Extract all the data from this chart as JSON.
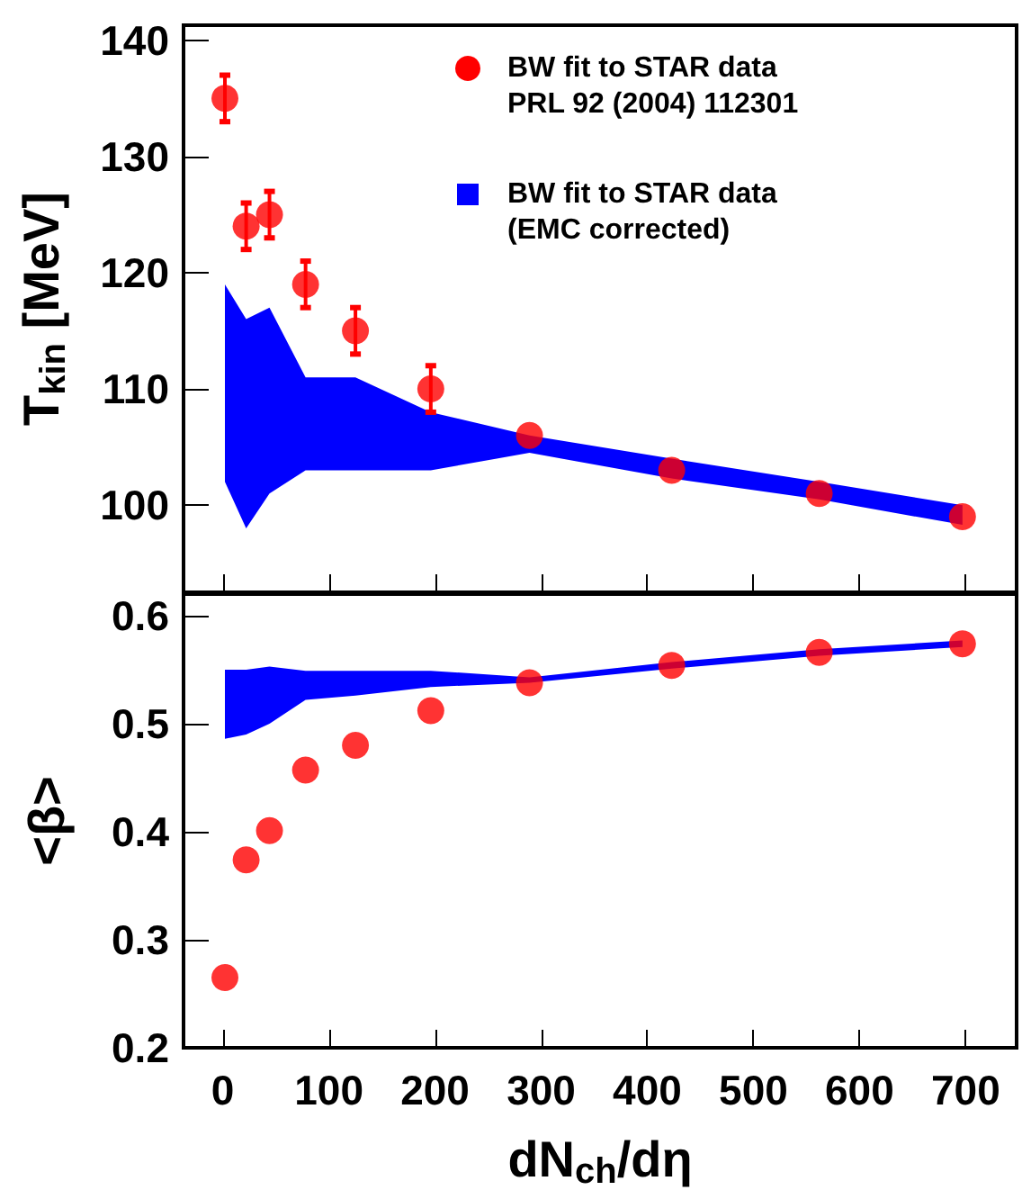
{
  "chart_data": [
    {
      "type": "scatter",
      "ylabel": "T$_{kin}$ [MeV]",
      "x": [
        2,
        22,
        44,
        78,
        125,
        196,
        289,
        423,
        562,
        697
      ],
      "xlim": [
        -37,
        748
      ],
      "xticks": [
        0,
        100,
        200,
        300,
        400,
        500,
        600,
        700
      ],
      "ylim": [
        92.5,
        141.3
      ],
      "yticks": [
        100,
        110,
        120,
        130,
        140
      ],
      "tick_labels": "y",
      "legend": "top right",
      "marker": "circle",
      "grid": false,
      "series": [
        {
          "name": "BW fit to STAR data\nPRL 92 (2004) 112301",
          "color": "#ff0000",
          "values": [
            135,
            124,
            125,
            119,
            115,
            110,
            106,
            103,
            101,
            99
          ],
          "errors": [
            2,
            2,
            2,
            2,
            2,
            2,
            null,
            null,
            null,
            null
          ]
        },
        {
          "name": "BW fit to STAR data\n(EMC corrected)",
          "type": "area",
          "color": "#0000ff",
          "values": [
            null,
            null,
            null,
            null,
            null,
            null,
            null,
            null,
            null,
            null
          ],
          "lower": [
            102,
            98,
            101,
            103,
            103,
            103,
            104.5,
            102.3,
            100.5,
            98.3
          ],
          "upper": [
            119,
            116,
            117,
            111,
            111,
            108,
            106,
            104,
            102,
            100
          ]
        }
      ]
    },
    {
      "type": "scatter",
      "ylabel": "<β>",
      "xlabel": "dN$_{ch}$/dη",
      "x": [
        2,
        22,
        44,
        78,
        125,
        196,
        289,
        423,
        562,
        697
      ],
      "xlim": [
        -37,
        748
      ],
      "xticks": [
        0,
        100,
        200,
        300,
        400,
        500,
        600,
        700
      ],
      "ylim": [
        0.2,
        0.62
      ],
      "yticks": [
        0.2,
        0.3,
        0.4,
        0.5,
        0.6
      ],
      "marker": "circle",
      "grid": false,
      "series": [
        {
          "color": "#ff0000",
          "values": [
            0.265,
            0.374,
            0.401,
            0.457,
            0.48,
            0.512,
            0.538,
            0.554,
            0.566,
            0.574
          ]
        },
        {
          "type": "area",
          "color": "#0000ff",
          "values": [
            null,
            null,
            null,
            null,
            null,
            null,
            null,
            null,
            null,
            null
          ],
          "lower": [
            0.486,
            0.49,
            0.5,
            0.522,
            0.526,
            0.534,
            0.538,
            0.551,
            0.563,
            0.571
          ],
          "upper": [
            0.55,
            0.55,
            0.553,
            0.549,
            0.549,
            0.549,
            0.543,
            0.557,
            0.569,
            0.577
          ]
        }
      ]
    }
  ]
}
